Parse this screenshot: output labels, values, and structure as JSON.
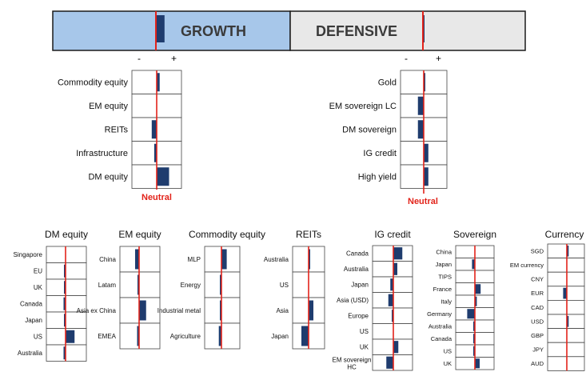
{
  "colors": {
    "bar": "#1f3c6e",
    "neutral_line": "#e2231a",
    "growth_fill": "#a7c7ea",
    "defensive_fill": "#e8e8e8"
  },
  "header": {
    "growth_label": "GROWTH",
    "defensive_label": "DEFENSIVE",
    "minus": "-",
    "plus": "+",
    "neutral_label": "Neutral"
  },
  "chart_data": [
    {
      "type": "bar",
      "orientation": "horizontal",
      "title": "GROWTH",
      "xlim": [
        -1,
        1
      ],
      "categories": [
        "GROWTH"
      ],
      "values": [
        0.12
      ]
    },
    {
      "type": "bar",
      "orientation": "horizontal",
      "title": "DEFENSIVE",
      "xlim": [
        -1,
        1
      ],
      "categories": [
        "DEFENSIVE"
      ],
      "values": [
        0.02
      ]
    },
    {
      "type": "bar",
      "orientation": "horizontal",
      "title": "",
      "xlim": [
        -1,
        1
      ],
      "categories": [
        "Commodity equity",
        "EM equity",
        "REITs",
        "Infrastructure",
        "DM equity"
      ],
      "values": [
        0.12,
        0,
        -0.2,
        -0.1,
        0.5
      ]
    },
    {
      "type": "bar",
      "orientation": "horizontal",
      "title": "",
      "xlim": [
        -1,
        1
      ],
      "categories": [
        "Gold",
        "EM sovereign LC",
        "DM sovereign",
        "IG credit",
        "High yield"
      ],
      "values": [
        0.05,
        -0.25,
        -0.25,
        0.2,
        0.2
      ]
    },
    {
      "type": "bar",
      "orientation": "horizontal",
      "title": "DM equity",
      "xlim": [
        -1,
        1
      ],
      "categories": [
        "Singapore",
        "EU",
        "UK",
        "Canada",
        "Japan",
        "US",
        "Australia"
      ],
      "values": [
        0,
        -0.05,
        -0.05,
        -0.1,
        -0.05,
        0.45,
        -0.1
      ]
    },
    {
      "type": "bar",
      "orientation": "horizontal",
      "title": "EM equity",
      "xlim": [
        -1,
        1
      ],
      "categories": [
        "China",
        "Latam",
        "Asia ex China",
        "EMEA"
      ],
      "values": [
        -0.2,
        -0.05,
        0.35,
        -0.1
      ]
    },
    {
      "type": "bar",
      "orientation": "horizontal",
      "title": "Commodity equity",
      "xlim": [
        -1,
        1
      ],
      "categories": [
        "MLP",
        "Energy",
        "Industrial metal",
        "Agriculture"
      ],
      "values": [
        0.3,
        -0.05,
        -0.05,
        -0.15
      ]
    },
    {
      "type": "bar",
      "orientation": "horizontal",
      "title": "REITs",
      "xlim": [
        -1,
        1
      ],
      "categories": [
        "Australia",
        "US",
        "Asia",
        "Japan"
      ],
      "values": [
        0.1,
        0,
        0.3,
        -0.45
      ]
    },
    {
      "type": "bar",
      "orientation": "horizontal",
      "title": "IG credit",
      "xlim": [
        -1,
        1
      ],
      "categories": [
        "Canada",
        "Australia",
        "Japan",
        "Asia (USD)",
        "Europe",
        "US",
        "UK",
        "EM sovereign HC"
      ],
      "values": [
        0.45,
        0.2,
        -0.15,
        -0.25,
        -0.05,
        0,
        0.25,
        -0.35
      ]
    },
    {
      "type": "bar",
      "orientation": "horizontal",
      "title": "Sovereign",
      "xlim": [
        -1,
        1
      ],
      "categories": [
        "China",
        "Japan",
        "TIPS",
        "France",
        "Italy",
        "Germany",
        "Australia",
        "Canada",
        "US",
        "UK"
      ],
      "values": [
        0,
        -0.15,
        0,
        0.3,
        0.1,
        -0.4,
        -0.05,
        -0.05,
        -0.05,
        0.25
      ]
    },
    {
      "type": "bar",
      "orientation": "horizontal",
      "title": "Currency",
      "xlim": [
        -1,
        1
      ],
      "categories": [
        "SGD",
        "EM currency",
        "CNY",
        "EUR",
        "CAD",
        "USD",
        "GBP",
        "JPY",
        "AUD"
      ],
      "values": [
        0.1,
        0,
        0,
        -0.2,
        0,
        0.1,
        0,
        0,
        0
      ]
    }
  ]
}
